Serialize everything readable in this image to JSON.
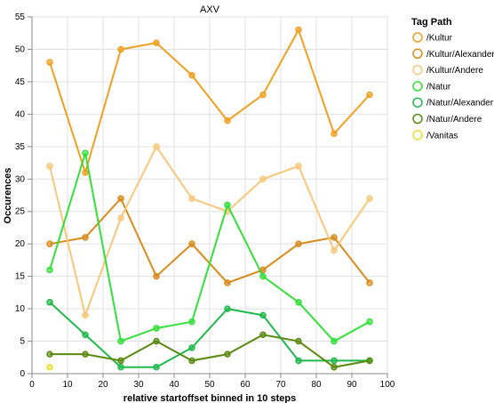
{
  "chart_data": {
    "type": "line",
    "title": "AXV",
    "xlabel": "relative startoffset binned in 10 steps",
    "ylabel": "Occurences",
    "xlim": [
      0,
      100
    ],
    "ylim": [
      0,
      55
    ],
    "x_ticks": [
      0,
      10,
      20,
      30,
      40,
      50,
      60,
      70,
      80,
      90,
      100
    ],
    "y_ticks": [
      0,
      5,
      10,
      15,
      20,
      25,
      30,
      35,
      40,
      45,
      50,
      55
    ],
    "grid": true,
    "legend": {
      "title": "Tag Path",
      "position": "right"
    },
    "series": [
      {
        "name": "/Kultur",
        "color": "#f0a020",
        "points": [
          [
            5,
            48
          ],
          [
            15,
            31
          ],
          [
            25,
            50
          ],
          [
            35,
            51
          ],
          [
            45,
            46
          ],
          [
            55,
            39
          ],
          [
            65,
            43
          ],
          [
            75,
            53
          ],
          [
            85,
            37
          ],
          [
            95,
            43
          ]
        ]
      },
      {
        "name": "/Kultur/Alexander",
        "color": "#d98b1a",
        "points": [
          [
            5,
            20
          ],
          [
            15,
            21
          ],
          [
            25,
            27
          ],
          [
            35,
            15
          ],
          [
            45,
            20
          ],
          [
            55,
            14
          ],
          [
            65,
            16
          ],
          [
            75,
            20
          ],
          [
            85,
            21
          ],
          [
            95,
            14
          ]
        ]
      },
      {
        "name": "/Kultur/Andere",
        "color": "#f8c77a",
        "points": [
          [
            5,
            32
          ],
          [
            15,
            9
          ],
          [
            25,
            24
          ],
          [
            35,
            35
          ],
          [
            45,
            27
          ],
          [
            55,
            25
          ],
          [
            65,
            30
          ],
          [
            75,
            32
          ],
          [
            85,
            19
          ],
          [
            95,
            27
          ]
        ]
      },
      {
        "name": "/Natur",
        "color": "#33e03a",
        "points": [
          [
            5,
            16
          ],
          [
            15,
            34
          ],
          [
            25,
            5
          ],
          [
            35,
            7
          ],
          [
            45,
            8
          ],
          [
            55,
            26
          ],
          [
            65,
            15
          ],
          [
            75,
            11
          ],
          [
            85,
            5
          ],
          [
            95,
            8
          ]
        ]
      },
      {
        "name": "/Natur/Alexander",
        "color": "#1fb84a",
        "points": [
          [
            5,
            11
          ],
          [
            15,
            6
          ],
          [
            25,
            1
          ],
          [
            35,
            1
          ],
          [
            45,
            4
          ],
          [
            55,
            10
          ],
          [
            65,
            9
          ],
          [
            75,
            2
          ],
          [
            85,
            2
          ],
          [
            95,
            2
          ]
        ]
      },
      {
        "name": "/Natur/Andere",
        "color": "#5a8a10",
        "points": [
          [
            5,
            3
          ],
          [
            15,
            3
          ],
          [
            25,
            2
          ],
          [
            35,
            5
          ],
          [
            45,
            2
          ],
          [
            55,
            3
          ],
          [
            65,
            6
          ],
          [
            75,
            5
          ],
          [
            85,
            1
          ],
          [
            95,
            2
          ]
        ]
      },
      {
        "name": "/Vanitas",
        "color": "#e8e030",
        "points": [
          [
            5,
            1
          ]
        ]
      }
    ]
  }
}
